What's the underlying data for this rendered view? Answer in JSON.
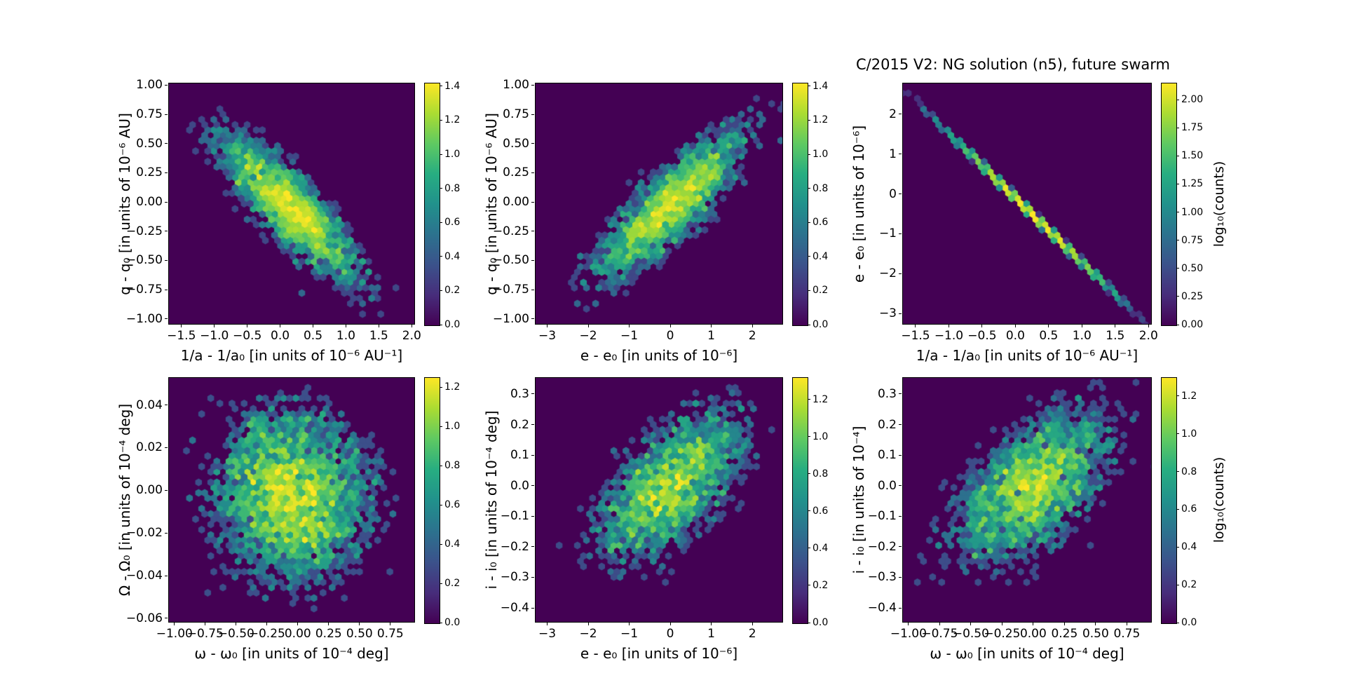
{
  "figure": {
    "title": "C/2015 V2: NG solution (n5),  future swarm",
    "background_color": "#ffffff",
    "hex_background_color": "#440154",
    "viridis_stops": [
      "#440154",
      "#472d7b",
      "#3b528b",
      "#2c728e",
      "#21918c",
      "#27ad81",
      "#5ec962",
      "#aadc32",
      "#fde725"
    ]
  },
  "chart_data": [
    {
      "id": "q-vs-inva",
      "type": "heatmap",
      "subtype": "hexbin",
      "xlabel": "1/a - 1/a₀ [in units of 10⁻⁶ AU⁻¹]",
      "ylabel": "q - q₀ [in units of 10⁻⁶ AU]",
      "xlim": [
        -1.7,
        2.05
      ],
      "ylim": [
        -1.05,
        1.02
      ],
      "xticks": {
        "values": [
          -1.5,
          -1.0,
          -0.5,
          0.0,
          0.5,
          1.0,
          1.5,
          2.0
        ],
        "decimals": 1
      },
      "yticks": {
        "values": [
          1.0,
          0.75,
          0.5,
          0.25,
          0.0,
          -0.25,
          -0.5,
          -0.75,
          -1.0
        ],
        "decimals": 2
      },
      "distribution": {
        "kind": "gaussian",
        "n": 3400,
        "mean": [
          0.15,
          -0.05
        ],
        "sigma": [
          0.55,
          0.33
        ],
        "rho": -0.85
      },
      "colorbar": {
        "ticks": [
          1.4,
          1.2,
          1.0,
          0.8,
          0.6,
          0.4,
          0.2,
          0.0
        ],
        "decimals": 1,
        "bar_max": 1.42,
        "label": ""
      }
    },
    {
      "id": "q-vs-e",
      "type": "heatmap",
      "subtype": "hexbin",
      "xlabel": "e - e₀ [in units of 10⁻⁶]",
      "ylabel": "q - q₀ [in units of 10⁻⁶ AU]",
      "xlim": [
        -3.3,
        2.75
      ],
      "ylim": [
        -1.05,
        1.02
      ],
      "xticks": {
        "values": [
          -3,
          -2,
          -1,
          0,
          1,
          2
        ],
        "decimals": 0
      },
      "yticks": {
        "values": [
          1.0,
          0.75,
          0.5,
          0.25,
          0.0,
          -0.25,
          -0.5,
          -0.75,
          -1.0
        ],
        "decimals": 2
      },
      "distribution": {
        "kind": "gaussian",
        "n": 3400,
        "mean": [
          0.0,
          -0.03
        ],
        "sigma": [
          0.95,
          0.33
        ],
        "rho": 0.85
      },
      "colorbar": {
        "ticks": [
          1.4,
          1.2,
          1.0,
          0.8,
          0.6,
          0.4,
          0.2,
          0.0
        ],
        "decimals": 1,
        "bar_max": 1.42,
        "label": ""
      }
    },
    {
      "id": "e-vs-inva",
      "type": "heatmap",
      "subtype": "hexbin",
      "xlabel": "1/a - 1/a₀ [in units of 10⁻⁶ AU⁻¹]",
      "ylabel": "e - e₀ [in units of 10⁻⁶]",
      "xlim": [
        -1.7,
        2.05
      ],
      "ylim": [
        -3.28,
        2.79
      ],
      "xticks": {
        "values": [
          -1.5,
          -1.0,
          -0.5,
          0.0,
          0.5,
          1.0,
          1.5,
          2.0
        ],
        "decimals": 1
      },
      "yticks": {
        "values": [
          2,
          1,
          0,
          -1,
          -2,
          -3
        ],
        "decimals": 0
      },
      "distribution": {
        "kind": "line",
        "n": 3000,
        "x_mean": 0.25,
        "x_sigma": 0.6,
        "slope": -1.62,
        "intercept": -0.1,
        "noise": 0.025
      },
      "colorbar": {
        "ticks": [
          2.0,
          1.75,
          1.5,
          1.25,
          1.0,
          0.75,
          0.5,
          0.25,
          0.0
        ],
        "decimals": 2,
        "bar_max": 2.15,
        "label": "log₁₀(counts)"
      }
    },
    {
      "id": "raan-vs-argperi",
      "type": "heatmap",
      "subtype": "hexbin",
      "xlabel": "ω - ω₀ [in units of 10⁻⁴ deg]",
      "ylabel": "Ω - Ω₀ [in units of 10⁻⁴ deg]",
      "xlim": [
        -1.05,
        0.95
      ],
      "ylim": [
        -0.062,
        0.053
      ],
      "xticks": {
        "values": [
          -1.0,
          -0.75,
          -0.5,
          -0.25,
          0.0,
          0.25,
          0.5,
          0.75
        ],
        "decimals": 2
      },
      "yticks": {
        "values": [
          0.04,
          0.02,
          0.0,
          -0.02,
          -0.04,
          -0.06
        ],
        "decimals": 2
      },
      "distribution": {
        "kind": "gaussian",
        "n": 5000,
        "mean": [
          -0.05,
          -0.003
        ],
        "sigma": [
          0.33,
          0.021
        ],
        "rho": -0.05
      },
      "colorbar": {
        "ticks": [
          1.2,
          1.0,
          0.8,
          0.6,
          0.4,
          0.2,
          0.0
        ],
        "decimals": 1,
        "bar_max": 1.25,
        "label": ""
      }
    },
    {
      "id": "i-vs-e",
      "type": "heatmap",
      "subtype": "hexbin",
      "xlabel": "e - e₀ [in units of 10⁻⁶]",
      "ylabel": "i - i₀ [in units of 10⁻⁴ deg]",
      "xlim": [
        -3.3,
        2.75
      ],
      "ylim": [
        -0.448,
        0.355
      ],
      "xticks": {
        "values": [
          -3,
          -2,
          -1,
          0,
          1,
          2
        ],
        "decimals": 0
      },
      "yticks": {
        "values": [
          0.3,
          0.2,
          0.1,
          0.0,
          -0.1,
          -0.2,
          -0.3,
          -0.4
        ],
        "decimals": 1
      },
      "distribution": {
        "kind": "gaussian",
        "n": 3400,
        "mean": [
          0.0,
          0.0
        ],
        "sigma": [
          0.95,
          0.13
        ],
        "rho": 0.6
      },
      "colorbar": {
        "ticks": [
          1.2,
          1.0,
          0.8,
          0.6,
          0.4,
          0.2,
          0.0
        ],
        "decimals": 1,
        "bar_max": 1.32,
        "label": ""
      }
    },
    {
      "id": "i-vs-argperi",
      "type": "heatmap",
      "subtype": "hexbin",
      "xlabel": "ω - ω₀ [in units of 10⁻⁴ deg]",
      "ylabel": "i - i₀ [in units of 10⁻⁴]",
      "xlim": [
        -1.05,
        0.95
      ],
      "ylim": [
        -0.448,
        0.355
      ],
      "xticks": {
        "values": [
          -1.0,
          -0.75,
          -0.5,
          -0.25,
          0.0,
          0.25,
          0.5,
          0.75
        ],
        "decimals": 2
      },
      "yticks": {
        "values": [
          0.3,
          0.2,
          0.1,
          0.0,
          -0.1,
          -0.2,
          -0.3,
          -0.4
        ],
        "decimals": 1
      },
      "distribution": {
        "kind": "gaussian",
        "n": 3700,
        "mean": [
          0.0,
          0.0
        ],
        "sigma": [
          0.33,
          0.13
        ],
        "rho": 0.55
      },
      "colorbar": {
        "ticks": [
          1.2,
          1.0,
          0.8,
          0.6,
          0.4,
          0.2,
          0.0
        ],
        "decimals": 1,
        "bar_max": 1.3,
        "label": "log₁₀(counts)"
      }
    }
  ]
}
